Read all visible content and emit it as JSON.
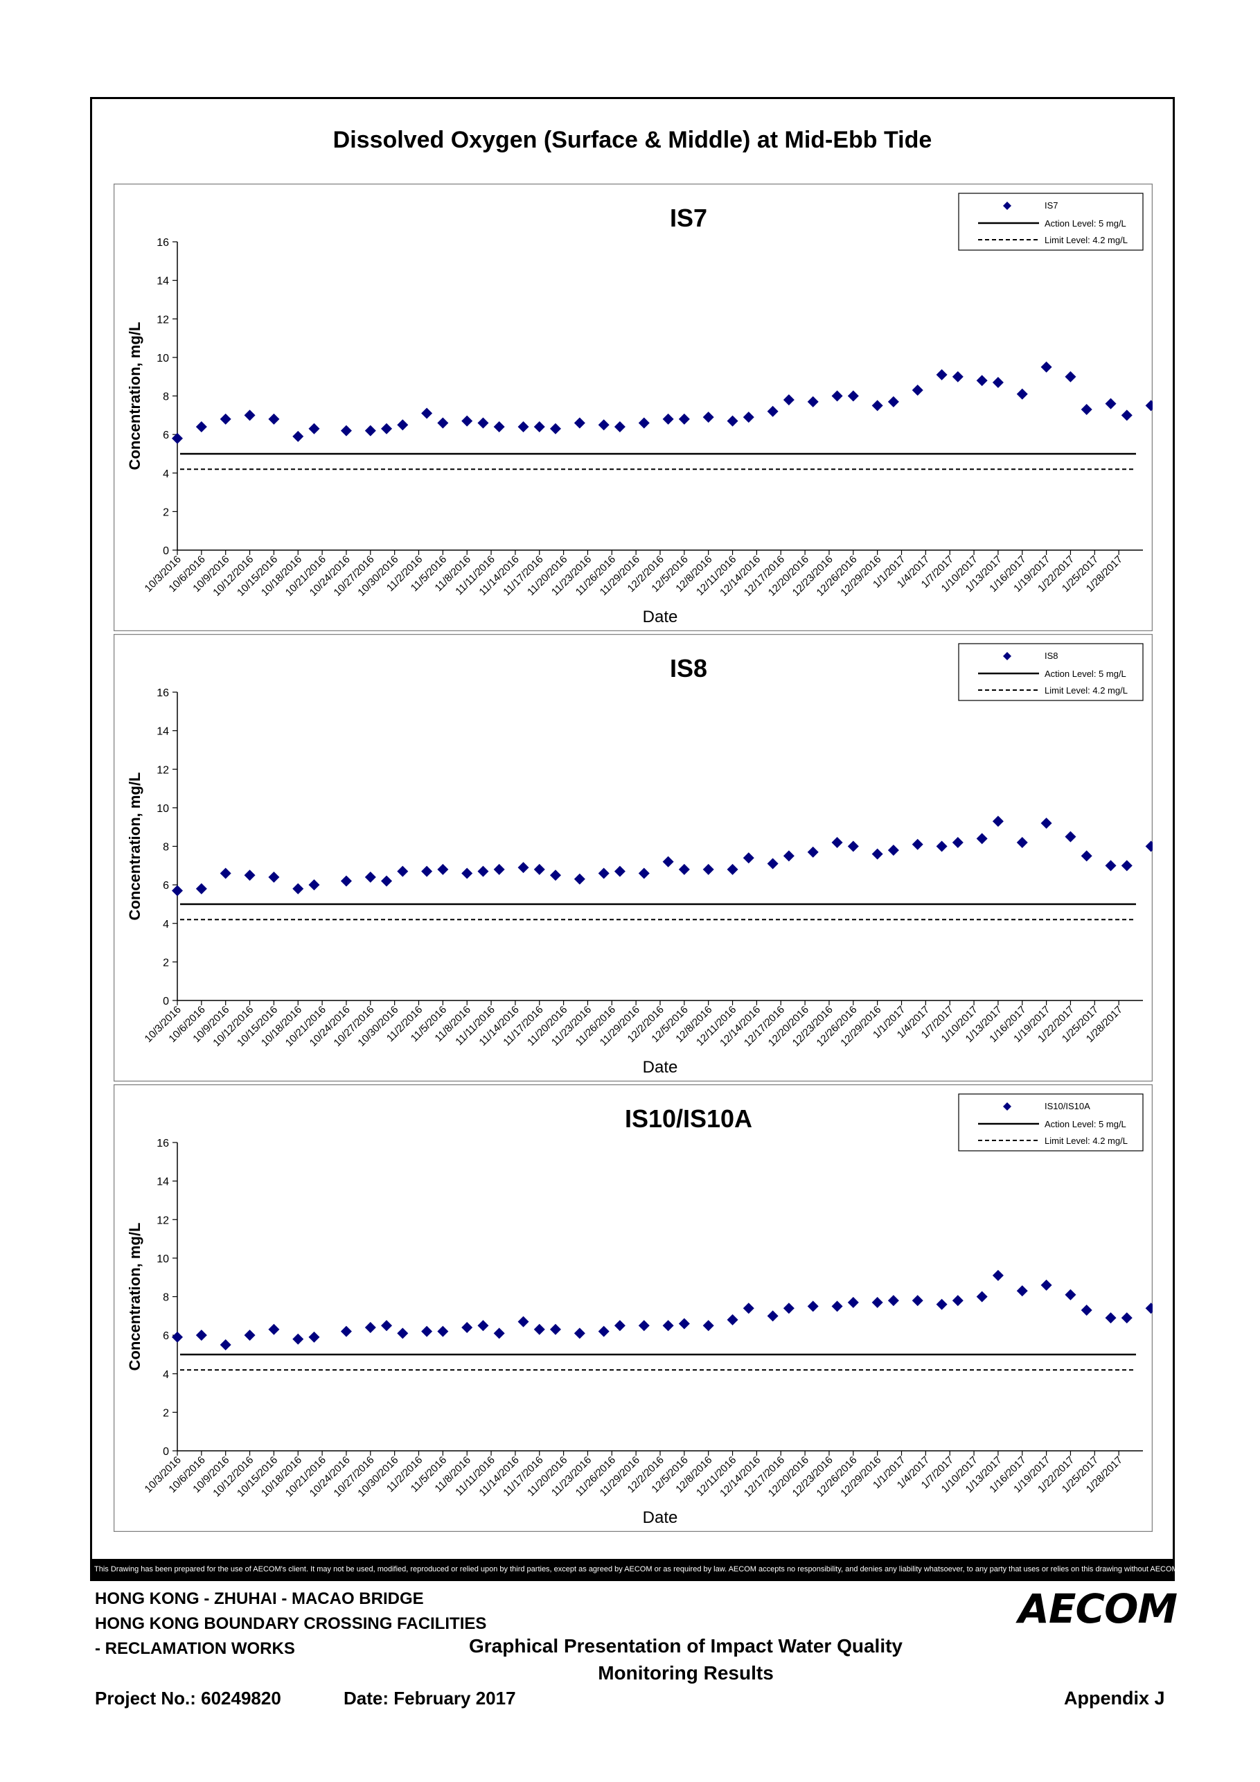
{
  "page": {
    "title": "Dissolved Oxygen (Surface & Middle) at Mid-Ebb Tide",
    "disclaimer": "This Drawing has been prepared for the use of AECOM's client. It may not be used, modified, reproduced or relied upon by third parties, except as agreed by AECOM or as required by law. AECOM accepts no responsibility, and denies any liability whatsoever, to any party that uses or relies on this drawing without AECOM's express written consent.",
    "project_lines": [
      "HONG KONG - ZHUHAI - MACAO BRIDGE",
      "HONG KONG BOUNDARY CROSSING FACILITIES",
      "- RECLAMATION WORKS"
    ],
    "doc_title_line1": "Graphical Presentation of Impact Water Quality",
    "doc_title_line2": "Monitoring Results",
    "logo": "AECOM",
    "project_no": "Project No.: 60249820",
    "date": "Date: February 2017",
    "appendix": "Appendix J"
  },
  "chart_data": [
    {
      "type": "scatter",
      "title": "IS7",
      "xlabel": "Date",
      "ylabel": "Concentration, mg/L",
      "ylim": [
        0,
        16
      ],
      "yticks": [
        0,
        2,
        4,
        6,
        8,
        10,
        12,
        14,
        16
      ],
      "xticks": [
        "10/3/2016",
        "10/6/2016",
        "10/9/2016",
        "10/12/2016",
        "10/15/2016",
        "10/18/2016",
        "10/21/2016",
        "10/24/2016",
        "10/27/2016",
        "10/30/2016",
        "11/2/2016",
        "11/5/2016",
        "11/8/2016",
        "11/11/2016",
        "11/14/2016",
        "11/17/2016",
        "11/20/2016",
        "11/23/2016",
        "11/26/2016",
        "11/29/2016",
        "12/2/2016",
        "12/5/2016",
        "12/8/2016",
        "12/11/2016",
        "12/14/2016",
        "12/17/2016",
        "12/20/2016",
        "12/23/2016",
        "12/26/2016",
        "12/29/2016",
        "1/1/2017",
        "1/4/2017",
        "1/7/2017",
        "1/10/2017",
        "1/13/2017",
        "1/16/2017",
        "1/19/2017",
        "1/22/2017",
        "1/25/2017",
        "1/28/2017"
      ],
      "xlim": [
        "10/3/2016",
        "1/31/2017"
      ],
      "legend_position": "top-right",
      "grid": false,
      "series": [
        {
          "name": "IS7",
          "color": "#00007f",
          "marker": "diamond",
          "x": [
            "10/3/2016",
            "10/6/2016",
            "10/9/2016",
            "10/12/2016",
            "10/15/2016",
            "10/18/2016",
            "10/20/2016",
            "10/24/2016",
            "10/27/2016",
            "10/29/2016",
            "10/31/2016",
            "11/3/2016",
            "11/5/2016",
            "11/8/2016",
            "11/10/2016",
            "11/12/2016",
            "11/15/2016",
            "11/17/2016",
            "11/19/2016",
            "11/22/2016",
            "11/25/2016",
            "11/27/2016",
            "11/30/2016",
            "12/3/2016",
            "12/5/2016",
            "12/8/2016",
            "12/11/2016",
            "12/13/2016",
            "12/16/2016",
            "12/18/2016",
            "12/21/2016",
            "12/24/2016",
            "12/26/2016",
            "12/29/2016",
            "12/31/2016",
            "1/3/2017",
            "1/6/2017",
            "1/8/2017",
            "1/11/2017",
            "1/13/2017",
            "1/16/2017",
            "1/19/2017",
            "1/22/2017",
            "1/24/2017",
            "1/27/2017",
            "1/29/2017",
            "2/1/2017"
          ],
          "y": [
            5.8,
            6.4,
            6.8,
            7.0,
            6.8,
            5.9,
            6.3,
            6.2,
            6.2,
            6.3,
            6.5,
            7.1,
            6.6,
            6.7,
            6.6,
            6.4,
            6.4,
            6.4,
            6.3,
            6.6,
            6.5,
            6.4,
            6.6,
            6.8,
            6.8,
            6.9,
            6.7,
            6.9,
            7.2,
            7.8,
            7.7,
            8.0,
            8.0,
            7.5,
            7.7,
            8.3,
            9.1,
            9.0,
            8.8,
            8.7,
            8.1,
            9.5,
            9.0,
            7.3,
            7.6,
            7.0,
            7.5
          ]
        },
        {
          "name": "Action Level: 5 mg/L",
          "color": "#000000",
          "style": "solid",
          "value": 5
        },
        {
          "name": "Limit Level: 4.2 mg/L",
          "color": "#000000",
          "style": "dashed",
          "value": 4.2
        }
      ]
    },
    {
      "type": "scatter",
      "title": "IS8",
      "xlabel": "Date",
      "ylabel": "Concentration, mg/L",
      "ylim": [
        0,
        16
      ],
      "yticks": [
        0,
        2,
        4,
        6,
        8,
        10,
        12,
        14,
        16
      ],
      "xticks": [
        "10/3/2016",
        "10/6/2016",
        "10/9/2016",
        "10/12/2016",
        "10/15/2016",
        "10/18/2016",
        "10/21/2016",
        "10/24/2016",
        "10/27/2016",
        "10/30/2016",
        "11/2/2016",
        "11/5/2016",
        "11/8/2016",
        "11/11/2016",
        "11/14/2016",
        "11/17/2016",
        "11/20/2016",
        "11/23/2016",
        "11/26/2016",
        "11/29/2016",
        "12/2/2016",
        "12/5/2016",
        "12/8/2016",
        "12/11/2016",
        "12/14/2016",
        "12/17/2016",
        "12/20/2016",
        "12/23/2016",
        "12/26/2016",
        "12/29/2016",
        "1/1/2017",
        "1/4/2017",
        "1/7/2017",
        "1/10/2017",
        "1/13/2017",
        "1/16/2017",
        "1/19/2017",
        "1/22/2017",
        "1/25/2017",
        "1/28/2017"
      ],
      "xlim": [
        "10/3/2016",
        "1/31/2017"
      ],
      "legend_position": "top-right",
      "grid": false,
      "series": [
        {
          "name": "IS8",
          "color": "#00007f",
          "marker": "diamond",
          "x": [
            "10/3/2016",
            "10/6/2016",
            "10/9/2016",
            "10/12/2016",
            "10/15/2016",
            "10/18/2016",
            "10/20/2016",
            "10/24/2016",
            "10/27/2016",
            "10/29/2016",
            "10/31/2016",
            "11/3/2016",
            "11/5/2016",
            "11/8/2016",
            "11/10/2016",
            "11/12/2016",
            "11/15/2016",
            "11/17/2016",
            "11/19/2016",
            "11/22/2016",
            "11/25/2016",
            "11/27/2016",
            "11/30/2016",
            "12/3/2016",
            "12/5/2016",
            "12/8/2016",
            "12/11/2016",
            "12/13/2016",
            "12/16/2016",
            "12/18/2016",
            "12/21/2016",
            "12/24/2016",
            "12/26/2016",
            "12/29/2016",
            "12/31/2016",
            "1/3/2017",
            "1/6/2017",
            "1/8/2017",
            "1/11/2017",
            "1/13/2017",
            "1/16/2017",
            "1/19/2017",
            "1/22/2017",
            "1/24/2017",
            "1/27/2017",
            "1/29/2017",
            "2/1/2017"
          ],
          "y": [
            5.7,
            5.8,
            6.6,
            6.5,
            6.4,
            5.8,
            6.0,
            6.2,
            6.4,
            6.2,
            6.7,
            6.7,
            6.8,
            6.6,
            6.7,
            6.8,
            6.9,
            6.8,
            6.5,
            6.3,
            6.6,
            6.7,
            6.6,
            7.2,
            6.8,
            6.8,
            6.8,
            7.4,
            7.1,
            7.5,
            7.7,
            8.2,
            8.0,
            7.6,
            7.8,
            8.1,
            8.0,
            8.2,
            8.4,
            9.3,
            8.2,
            9.2,
            8.5,
            7.5,
            7.0,
            7.0,
            8.0
          ]
        },
        {
          "name": "Action Level: 5 mg/L",
          "color": "#000000",
          "style": "solid",
          "value": 5
        },
        {
          "name": "Limit Level: 4.2 mg/L",
          "color": "#000000",
          "style": "dashed",
          "value": 4.2
        }
      ]
    },
    {
      "type": "scatter",
      "title": "IS10/IS10A",
      "xlabel": "Date",
      "ylabel": "Concentration, mg/L",
      "ylim": [
        0,
        16
      ],
      "yticks": [
        0,
        2,
        4,
        6,
        8,
        10,
        12,
        14,
        16
      ],
      "xticks": [
        "10/3/2016",
        "10/6/2016",
        "10/9/2016",
        "10/12/2016",
        "10/15/2016",
        "10/18/2016",
        "10/21/2016",
        "10/24/2016",
        "10/27/2016",
        "10/30/2016",
        "11/2/2016",
        "11/5/2016",
        "11/8/2016",
        "11/11/2016",
        "11/14/2016",
        "11/17/2016",
        "11/20/2016",
        "11/23/2016",
        "11/26/2016",
        "11/29/2016",
        "12/2/2016",
        "12/5/2016",
        "12/8/2016",
        "12/11/2016",
        "12/14/2016",
        "12/17/2016",
        "12/20/2016",
        "12/23/2016",
        "12/26/2016",
        "12/29/2016",
        "1/1/2017",
        "1/4/2017",
        "1/7/2017",
        "1/10/2017",
        "1/13/2017",
        "1/16/2017",
        "1/19/2017",
        "1/22/2017",
        "1/25/2017",
        "1/28/2017"
      ],
      "xlim": [
        "10/3/2016",
        "1/31/2017"
      ],
      "legend_position": "top-right",
      "grid": false,
      "series": [
        {
          "name": "IS10/IS10A",
          "color": "#00007f",
          "marker": "diamond",
          "x": [
            "10/3/2016",
            "10/6/2016",
            "10/9/2016",
            "10/12/2016",
            "10/15/2016",
            "10/18/2016",
            "10/20/2016",
            "10/24/2016",
            "10/27/2016",
            "10/29/2016",
            "10/31/2016",
            "11/3/2016",
            "11/5/2016",
            "11/8/2016",
            "11/10/2016",
            "11/12/2016",
            "11/15/2016",
            "11/17/2016",
            "11/19/2016",
            "11/22/2016",
            "11/25/2016",
            "11/27/2016",
            "11/30/2016",
            "12/3/2016",
            "12/5/2016",
            "12/8/2016",
            "12/11/2016",
            "12/13/2016",
            "12/16/2016",
            "12/18/2016",
            "12/21/2016",
            "12/24/2016",
            "12/26/2016",
            "12/29/2016",
            "12/31/2016",
            "1/3/2017",
            "1/6/2017",
            "1/8/2017",
            "1/11/2017",
            "1/13/2017",
            "1/16/2017",
            "1/19/2017",
            "1/22/2017",
            "1/24/2017",
            "1/27/2017",
            "1/29/2017",
            "2/1/2017"
          ],
          "y": [
            5.9,
            6.0,
            5.5,
            6.0,
            6.3,
            5.8,
            5.9,
            6.2,
            6.4,
            6.5,
            6.1,
            6.2,
            6.2,
            6.4,
            6.5,
            6.1,
            6.7,
            6.3,
            6.3,
            6.1,
            6.2,
            6.5,
            6.5,
            6.5,
            6.6,
            6.5,
            6.8,
            7.4,
            7.0,
            7.4,
            7.5,
            7.5,
            7.7,
            7.7,
            7.8,
            7.8,
            7.6,
            7.8,
            8.0,
            9.1,
            8.3,
            8.6,
            8.1,
            7.3,
            6.9,
            6.9,
            7.4
          ]
        },
        {
          "name": "Action Level: 5 mg/L",
          "color": "#000000",
          "style": "solid",
          "value": 5
        },
        {
          "name": "Limit Level: 4.2 mg/L",
          "color": "#000000",
          "style": "dashed",
          "value": 4.2
        }
      ]
    }
  ]
}
